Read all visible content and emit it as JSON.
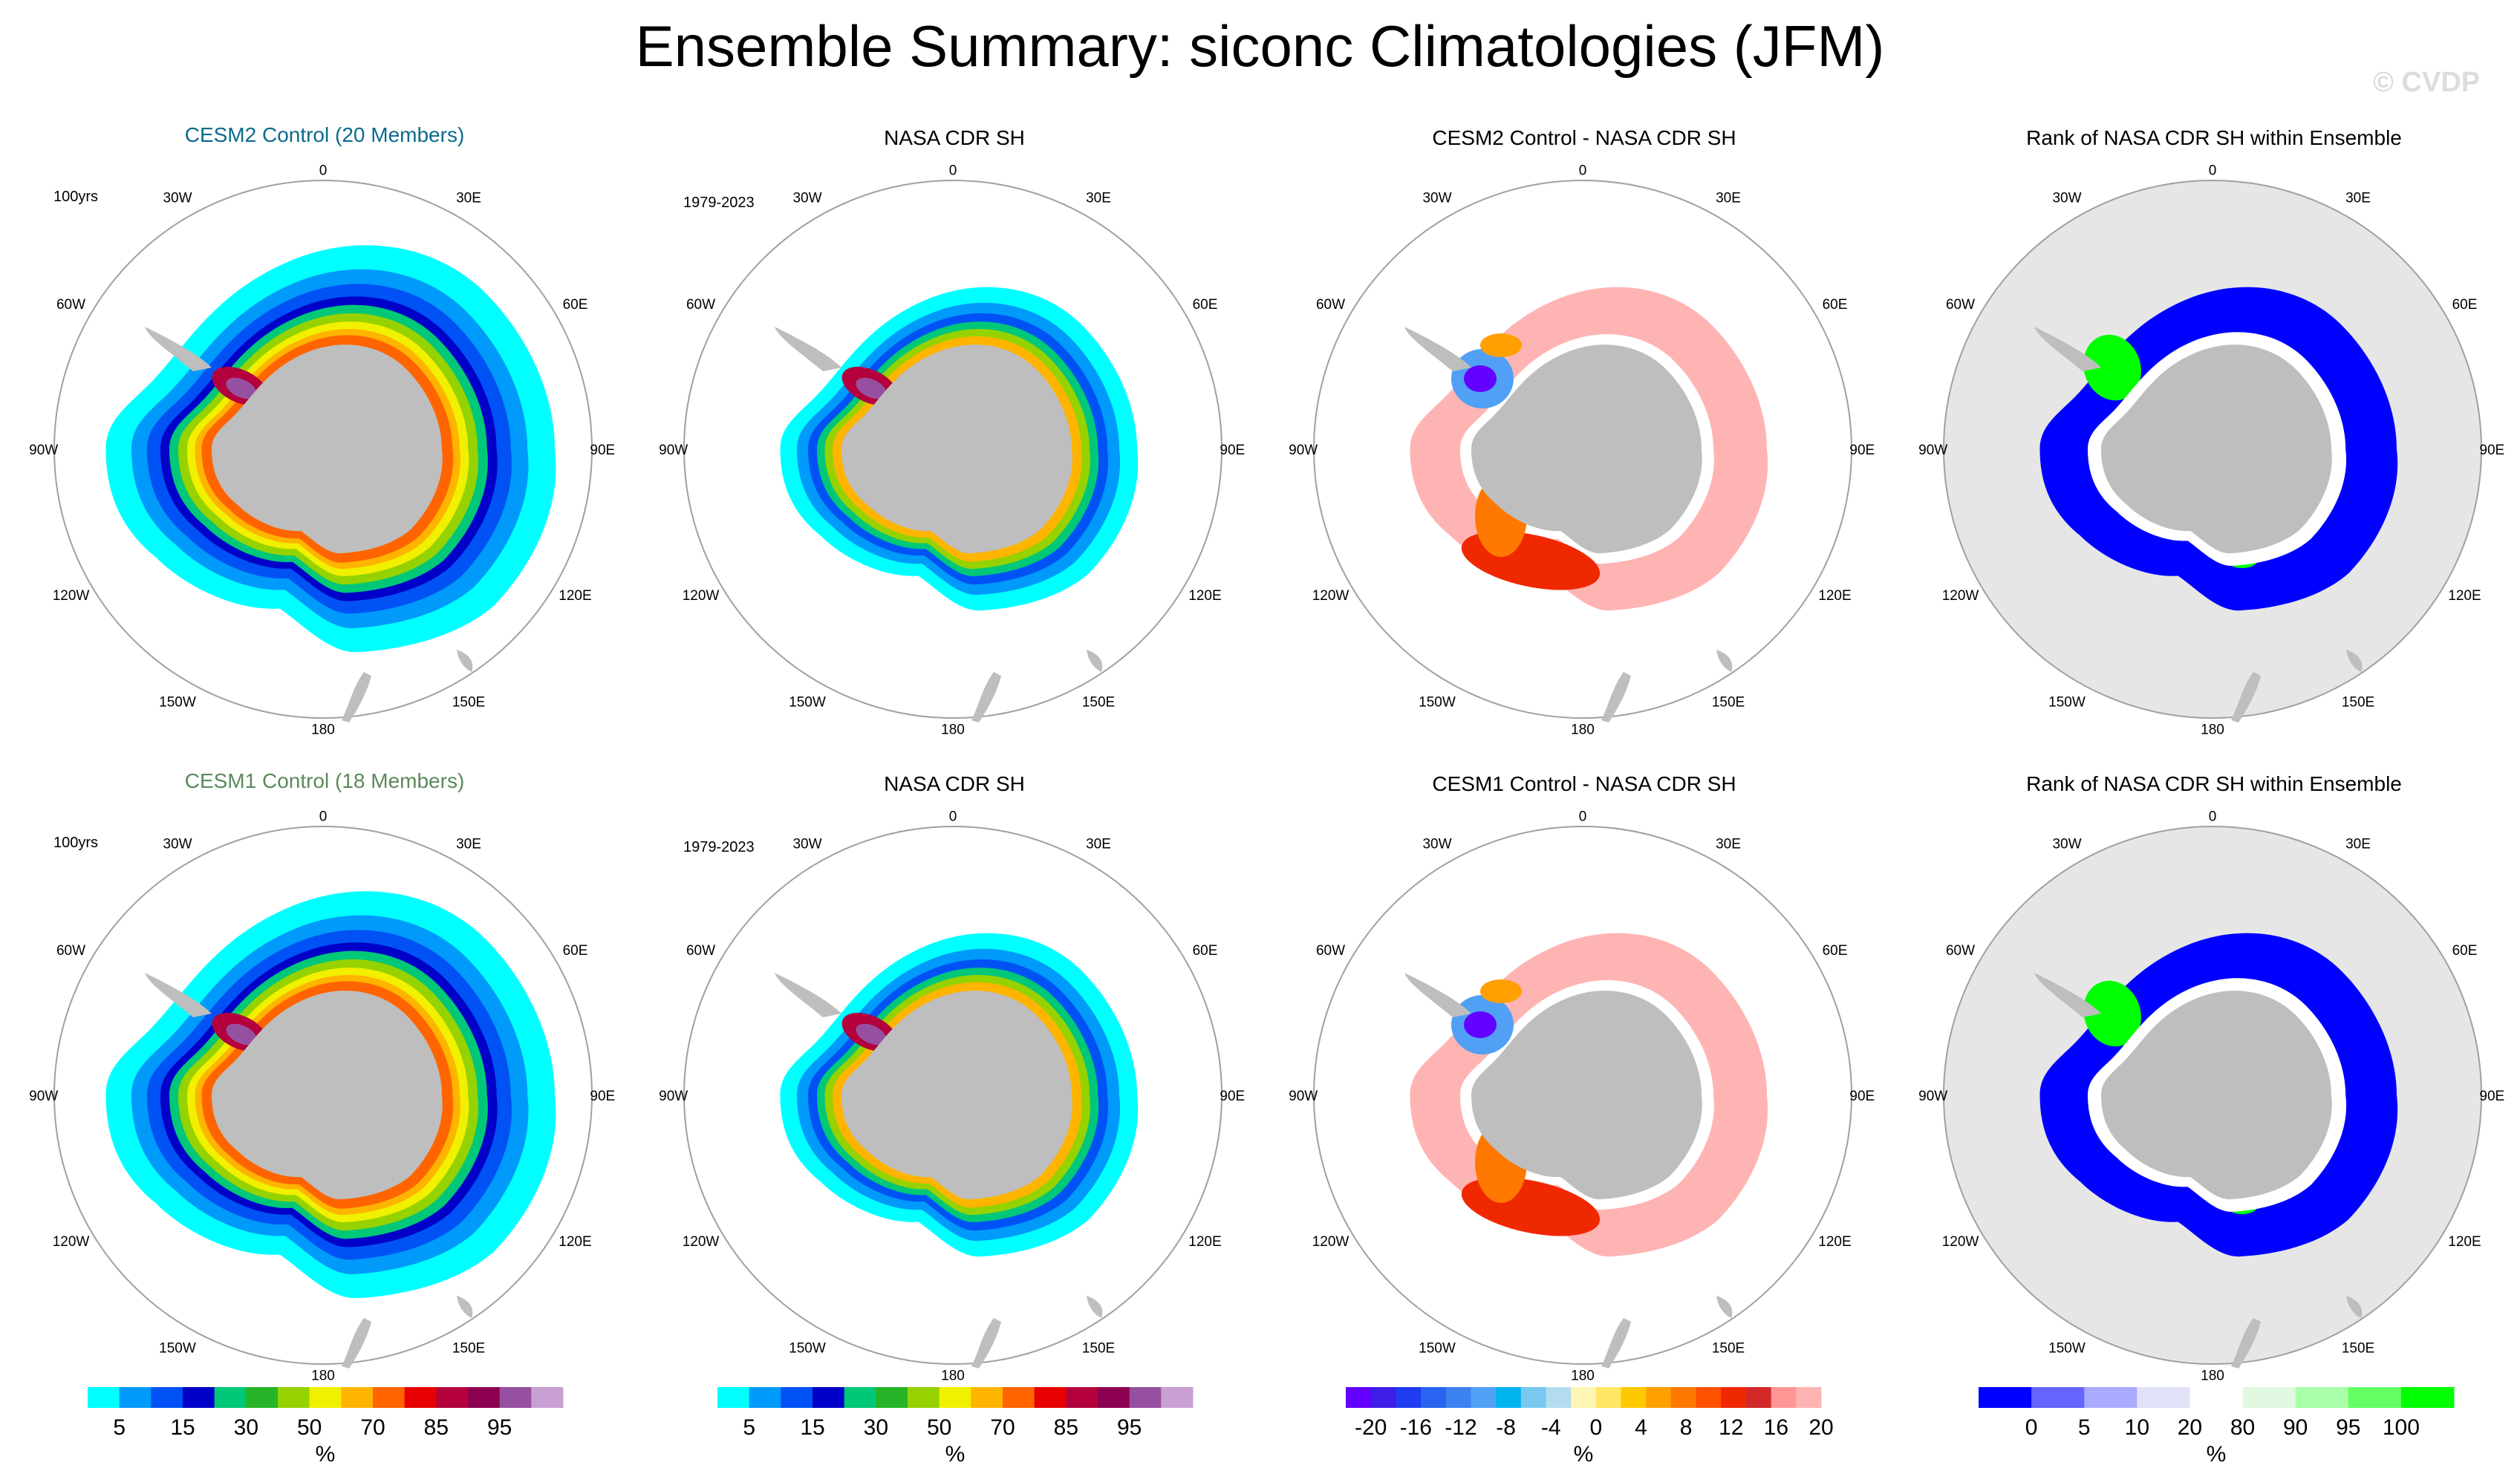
{
  "title": "Ensemble Summary: siconc Climatologies (JFM)",
  "watermark": "© CVDP",
  "colors": {
    "land": "#bebebe",
    "rank_background": "#e6e6e6",
    "circle": "#a0a0a0",
    "cesm2_title": "#0b6a8c",
    "cesm1_title": "#5a8a5a"
  },
  "longitude_labels": [
    "0",
    "30E",
    "60E",
    "90E",
    "120E",
    "150E",
    "180",
    "150W",
    "120W",
    "90W",
    "60W",
    "30W"
  ],
  "rows": [
    {
      "panels": [
        {
          "title": "CESM2 Control (20 Members)",
          "period": "100yrs",
          "kind": "conc"
        },
        {
          "title": "NASA CDR SH",
          "period": "1979-2023",
          "kind": "conc"
        },
        {
          "title": "CESM2 Control - NASA CDR SH",
          "period": "",
          "kind": "diff"
        },
        {
          "title": "Rank of NASA CDR SH within Ensemble",
          "period": "",
          "kind": "rank"
        }
      ]
    },
    {
      "panels": [
        {
          "title": "CESM1 Control (18 Members)",
          "period": "100yrs",
          "kind": "conc"
        },
        {
          "title": "NASA CDR SH",
          "period": "1979-2023",
          "kind": "conc"
        },
        {
          "title": "CESM1 Control - NASA CDR SH",
          "period": "",
          "kind": "diff"
        },
        {
          "title": "Rank of NASA CDR SH within Ensemble",
          "period": "",
          "kind": "rank"
        }
      ]
    }
  ],
  "chart_data": {
    "type": "heatmap",
    "projection": "south polar stereographic",
    "units_label": "%",
    "colorbars": {
      "conc": {
        "colors": [
          "#00ffff",
          "#009afa",
          "#0052f5",
          "#0000c8",
          "#00c878",
          "#28b428",
          "#96d200",
          "#f0f000",
          "#ffb400",
          "#ff6400",
          "#e60000",
          "#b4003c",
          "#8c0050",
          "#9650a0",
          "#c8a0d2"
        ],
        "labels": [
          "5",
          "15",
          "30",
          "50",
          "70",
          "85",
          "95"
        ]
      },
      "diff": {
        "colors": [
          "#6400ff",
          "#3c1ee6",
          "#1e3cf0",
          "#2864f0",
          "#3c82f0",
          "#50a0f5",
          "#00b4f0",
          "#78c8f0",
          "#b4dcf0",
          "#fff5b4",
          "#ffe664",
          "#ffc800",
          "#ffa000",
          "#ff7800",
          "#ff5000",
          "#f02800",
          "#d22828",
          "#ff9696",
          "#ffb4b4"
        ],
        "labels": [
          "-20",
          "-16",
          "-12",
          "-8",
          "-4",
          "0",
          "4",
          "8",
          "12",
          "16",
          "20"
        ]
      },
      "rank": {
        "colors": [
          "#0000ff",
          "#6464ff",
          "#aaaaff",
          "#e1e1f8",
          "#ffffff",
          "#e1f8e1",
          "#aaffaa",
          "#64ff64",
          "#00ff00"
        ],
        "labels": [
          "0",
          "5",
          "10",
          "20",
          "80",
          "90",
          "95",
          "100"
        ]
      }
    }
  }
}
